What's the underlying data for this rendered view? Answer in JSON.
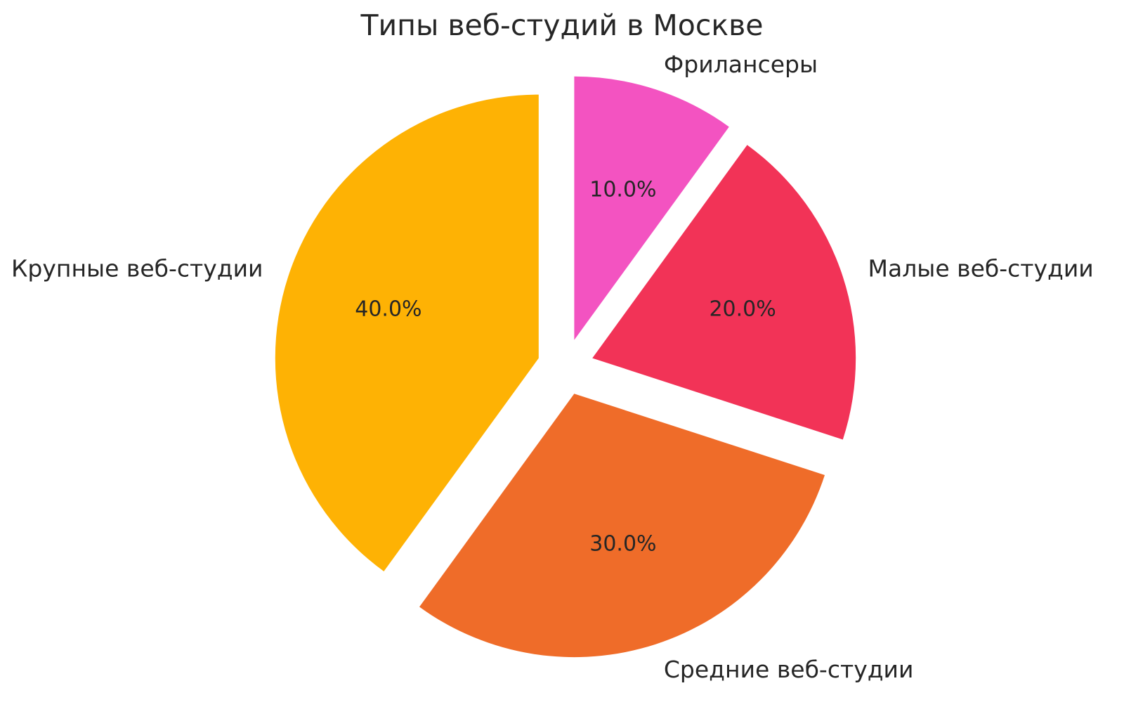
{
  "page": {
    "background_color": "#ffffff",
    "text_color": "#262626"
  },
  "chart_data": {
    "type": "pie",
    "title": "Типы веб-студий в Москве",
    "categories": [
      "Фрилансеры",
      "Малые веб-студии",
      "Средние веб-студии",
      "Крупные веб-студии"
    ],
    "values": [
      10,
      20,
      30,
      40
    ],
    "percent_labels": [
      "10.0%",
      "20.0%",
      "30.0%",
      "40.0%"
    ],
    "colors": [
      "#F353C1",
      "#F23357",
      "#EF6C29",
      "#FEB204"
    ],
    "start_angle_deg": 90,
    "direction": "clockwise",
    "explode": [
      0.107,
      0.107,
      0.107,
      0.107
    ],
    "pct_distance": 0.6,
    "label_distance": 1.1,
    "legend": "none",
    "background": "#ffffff"
  }
}
